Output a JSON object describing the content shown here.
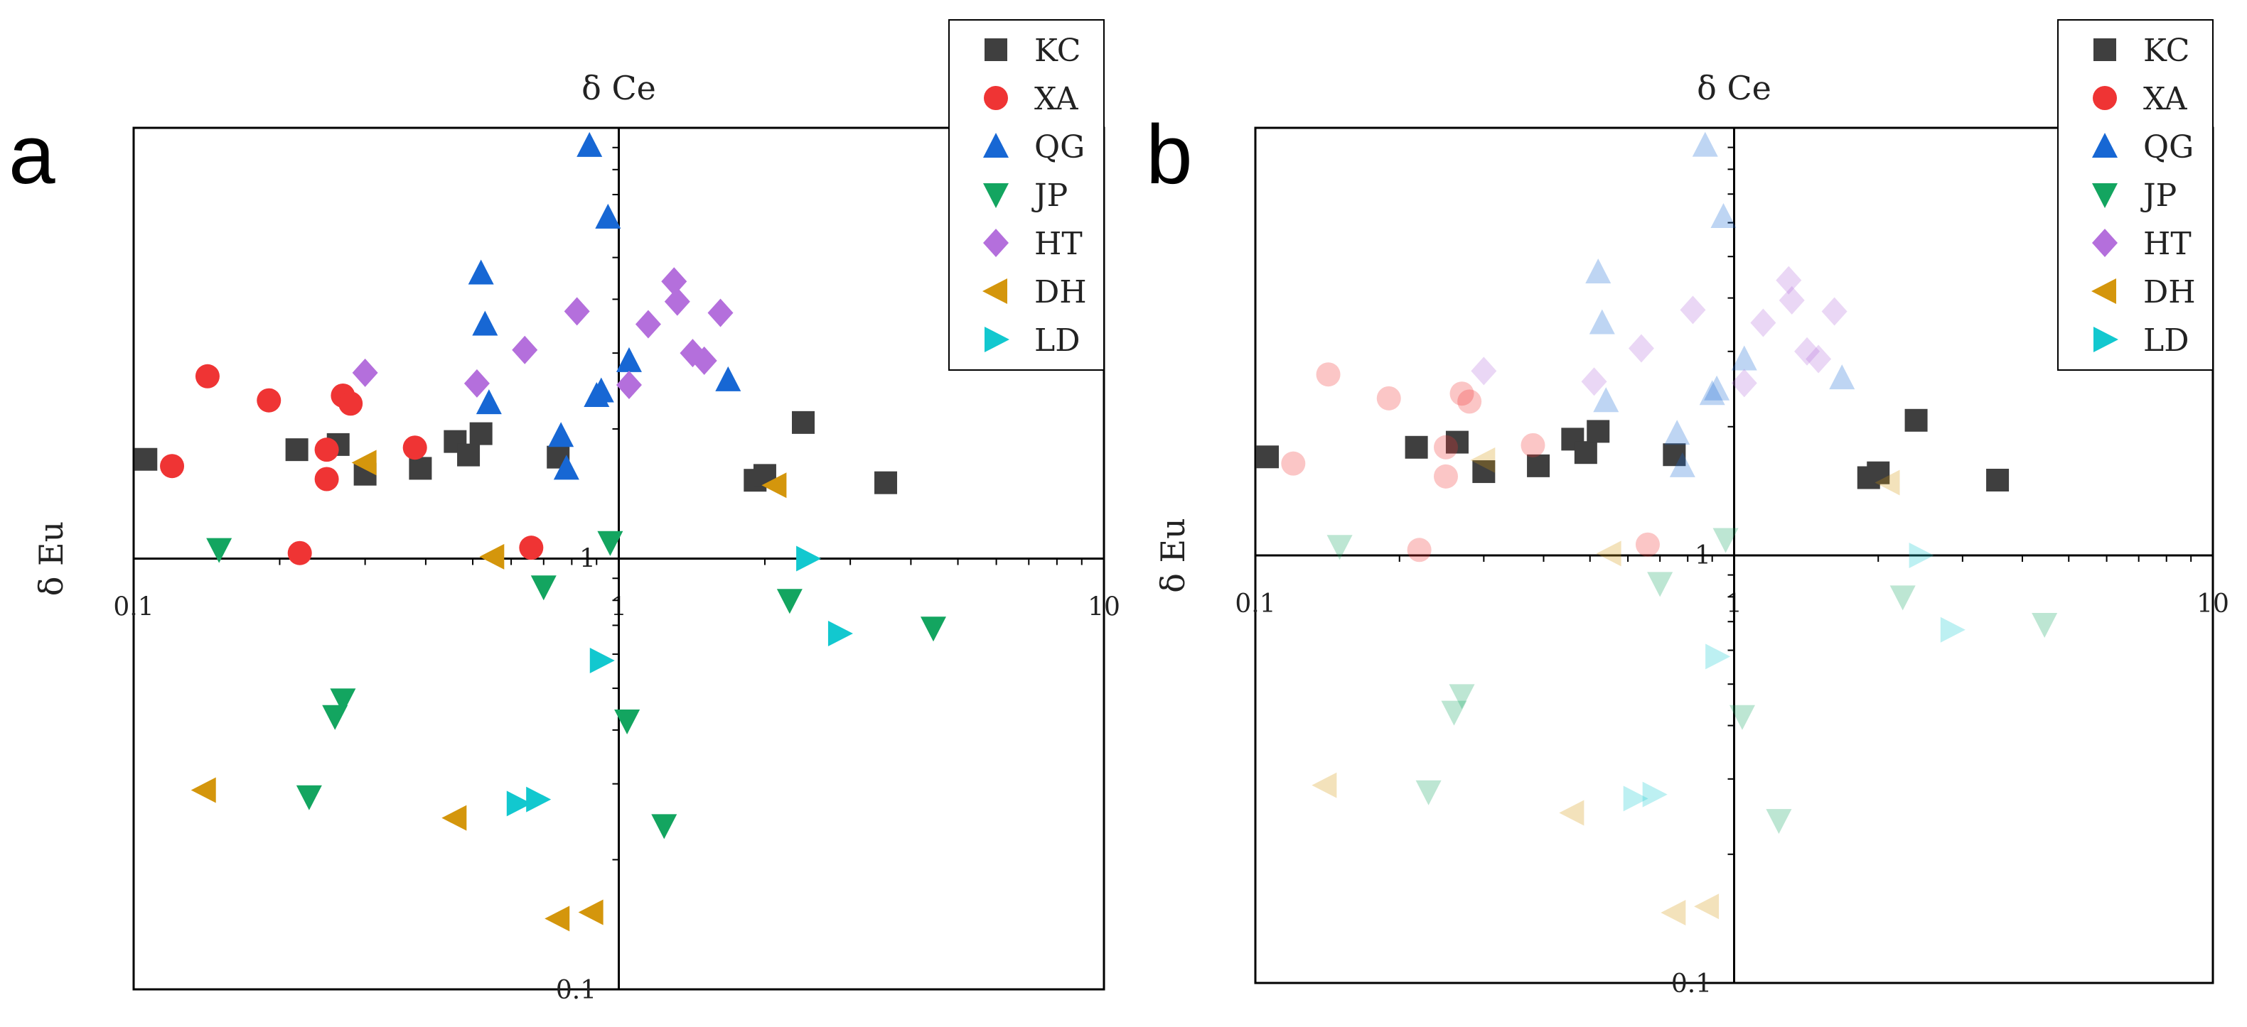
{
  "colors": {
    "KC": "#3f3f3f",
    "XA": "#ef3434",
    "QG": "#1767d4",
    "JP": "#13a560",
    "HT": "#b46fdc",
    "DH": "#d4960c",
    "LD": "#12c8cf"
  },
  "markers": {
    "KC": "square",
    "XA": "circle",
    "QG": "triangle-up",
    "JP": "triangle-down",
    "HT": "diamond",
    "DH": "triangle-left",
    "LD": "triangle-right"
  },
  "chart_data": [
    {
      "panel": "a",
      "type": "scatter",
      "xlabel": "δ Ce",
      "ylabel": "δ Eu",
      "xscale": "log",
      "yscale": "log",
      "xlim": [
        0.1,
        10
      ],
      "ylim": [
        0.1,
        10
      ],
      "axes_cross_at": [
        1,
        1
      ],
      "x_tick_labels": [
        "0.1",
        "1",
        "10"
      ],
      "y_tick_labels": [
        "0.1",
        "1"
      ],
      "legend_position": "top-right",
      "faded_series": [],
      "series": [
        {
          "name": "KC",
          "points": [
            [
              0.106,
              1.7
            ],
            [
              0.217,
              1.79
            ],
            [
              0.264,
              1.84
            ],
            [
              0.3,
              1.57
            ],
            [
              0.39,
              1.62
            ],
            [
              0.46,
              1.87
            ],
            [
              0.49,
              1.74
            ],
            [
              0.52,
              1.95
            ],
            [
              0.75,
              1.72
            ],
            [
              1.91,
              1.52
            ],
            [
              2.0,
              1.56
            ],
            [
              2.4,
              2.07
            ],
            [
              3.55,
              1.5
            ]
          ]
        },
        {
          "name": "XA",
          "points": [
            [
              0.12,
              1.64
            ],
            [
              0.142,
              2.65
            ],
            [
              0.19,
              2.33
            ],
            [
              0.22,
              1.03
            ],
            [
              0.25,
              1.53
            ],
            [
              0.25,
              1.79
            ],
            [
              0.27,
              2.39
            ],
            [
              0.28,
              2.29
            ],
            [
              0.38,
              1.81
            ],
            [
              0.66,
              1.06
            ]
          ]
        },
        {
          "name": "QG",
          "points": [
            [
              0.52,
              4.6
            ],
            [
              0.53,
              3.5
            ],
            [
              0.54,
              2.3
            ],
            [
              0.76,
              1.93
            ],
            [
              0.78,
              1.62
            ],
            [
              0.87,
              9.1
            ],
            [
              0.9,
              2.39
            ],
            [
              0.92,
              2.45
            ],
            [
              0.95,
              6.2
            ],
            [
              1.05,
              2.88
            ],
            [
              1.68,
              2.6
            ]
          ]
        },
        {
          "name": "HT",
          "points": [
            [
              0.3,
              2.7
            ],
            [
              0.51,
              2.55
            ],
            [
              0.64,
              3.05
            ],
            [
              0.82,
              3.75
            ],
            [
              1.05,
              2.53
            ],
            [
              1.15,
              3.5
            ],
            [
              1.3,
              4.4
            ],
            [
              1.32,
              3.95
            ],
            [
              1.42,
              3.0
            ],
            [
              1.5,
              2.88
            ],
            [
              1.62,
              3.72
            ]
          ]
        },
        {
          "name": "DH",
          "points": [
            [
              0.14,
              0.29
            ],
            [
              0.3,
              1.67
            ],
            [
              0.46,
              0.25
            ],
            [
              0.55,
              1.01
            ],
            [
              0.75,
              0.146
            ],
            [
              0.88,
              0.151
            ],
            [
              2.1,
              1.48
            ]
          ]
        },
        {
          "name": "JP",
          "points": [
            [
              0.15,
              1.05
            ],
            [
              0.26,
              0.43
            ],
            [
              0.27,
              0.47
            ],
            [
              0.23,
              0.28
            ],
            [
              0.7,
              0.86
            ],
            [
              0.96,
              1.09
            ],
            [
              1.04,
              0.42
            ],
            [
              1.24,
              0.24
            ],
            [
              2.25,
              0.8
            ],
            [
              4.45,
              0.69
            ]
          ]
        },
        {
          "name": "LD",
          "points": [
            [
              0.62,
              0.27
            ],
            [
              0.68,
              0.276
            ],
            [
              0.92,
              0.58
            ],
            [
              2.45,
              1.0
            ],
            [
              2.85,
              0.67
            ]
          ]
        }
      ]
    },
    {
      "panel": "b",
      "type": "scatter",
      "xlabel": "δ Ce",
      "ylabel": "δ Eu",
      "xscale": "log",
      "yscale": "log",
      "xlim": [
        0.1,
        10
      ],
      "ylim": [
        0.1,
        10
      ],
      "axes_cross_at": [
        1,
        1
      ],
      "x_tick_labels": [
        "0.1",
        "1",
        "10"
      ],
      "y_tick_labels": [
        "0.1",
        "1"
      ],
      "legend_position": "top-right",
      "faded_series": [
        "XA",
        "QG",
        "JP",
        "HT",
        "DH",
        "LD"
      ],
      "series": [
        {
          "name": "KC",
          "points": [
            [
              0.106,
              1.7
            ],
            [
              0.217,
              1.79
            ],
            [
              0.264,
              1.84
            ],
            [
              0.3,
              1.57
            ],
            [
              0.39,
              1.62
            ],
            [
              0.46,
              1.87
            ],
            [
              0.49,
              1.74
            ],
            [
              0.52,
              1.95
            ],
            [
              0.75,
              1.72
            ],
            [
              1.91,
              1.52
            ],
            [
              2.0,
              1.56
            ],
            [
              2.4,
              2.07
            ],
            [
              3.55,
              1.5
            ]
          ]
        },
        {
          "name": "XA",
          "points": [
            [
              0.12,
              1.64
            ],
            [
              0.142,
              2.65
            ],
            [
              0.19,
              2.33
            ],
            [
              0.22,
              1.03
            ],
            [
              0.25,
              1.53
            ],
            [
              0.25,
              1.79
            ],
            [
              0.27,
              2.39
            ],
            [
              0.28,
              2.29
            ],
            [
              0.38,
              1.81
            ],
            [
              0.66,
              1.06
            ]
          ]
        },
        {
          "name": "QG",
          "points": [
            [
              0.52,
              4.6
            ],
            [
              0.53,
              3.5
            ],
            [
              0.54,
              2.3
            ],
            [
              0.76,
              1.93
            ],
            [
              0.78,
              1.62
            ],
            [
              0.87,
              9.1
            ],
            [
              0.9,
              2.39
            ],
            [
              0.92,
              2.45
            ],
            [
              0.95,
              6.2
            ],
            [
              1.05,
              2.88
            ],
            [
              1.68,
              2.6
            ]
          ]
        },
        {
          "name": "HT",
          "points": [
            [
              0.3,
              2.7
            ],
            [
              0.51,
              2.55
            ],
            [
              0.64,
              3.05
            ],
            [
              0.82,
              3.75
            ],
            [
              1.05,
              2.53
            ],
            [
              1.15,
              3.5
            ],
            [
              1.3,
              4.4
            ],
            [
              1.32,
              3.95
            ],
            [
              1.42,
              3.0
            ],
            [
              1.5,
              2.88
            ],
            [
              1.62,
              3.72
            ]
          ]
        },
        {
          "name": "DH",
          "points": [
            [
              0.14,
              0.29
            ],
            [
              0.3,
              1.67
            ],
            [
              0.46,
              0.25
            ],
            [
              0.55,
              1.01
            ],
            [
              0.75,
              0.146
            ],
            [
              0.88,
              0.151
            ],
            [
              2.1,
              1.48
            ]
          ]
        },
        {
          "name": "JP",
          "points": [
            [
              0.15,
              1.05
            ],
            [
              0.26,
              0.43
            ],
            [
              0.27,
              0.47
            ],
            [
              0.23,
              0.28
            ],
            [
              0.7,
              0.86
            ],
            [
              0.96,
              1.09
            ],
            [
              1.04,
              0.42
            ],
            [
              1.24,
              0.24
            ],
            [
              2.25,
              0.8
            ],
            [
              4.45,
              0.69
            ]
          ]
        },
        {
          "name": "LD",
          "points": [
            [
              0.62,
              0.27
            ],
            [
              0.68,
              0.276
            ],
            [
              0.92,
              0.58
            ],
            [
              2.45,
              1.0
            ],
            [
              2.85,
              0.67
            ]
          ]
        }
      ]
    }
  ],
  "legend": {
    "entries": [
      "KC",
      "XA",
      "QG",
      "JP",
      "HT",
      "DH",
      "LD"
    ]
  }
}
